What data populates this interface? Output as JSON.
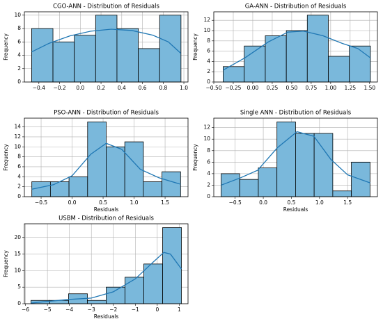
{
  "chart_data": [
    {
      "type": "histogram",
      "title": "CGO-ANN - Distribution of Residuals",
      "ylabel": "Frequency",
      "bins": [
        -0.47,
        -0.264,
        -0.058,
        0.148,
        0.354,
        0.56,
        0.766,
        0.972
      ],
      "values": [
        8,
        6,
        7,
        10,
        8,
        5,
        10
      ],
      "kde": {
        "x": [
          -0.47,
          -0.3,
          -0.1,
          0.1,
          0.3,
          0.5,
          0.7,
          0.85,
          0.97
        ],
        "y": [
          4.5,
          5.8,
          6.9,
          7.6,
          7.9,
          7.7,
          7.0,
          6.0,
          4.3
        ]
      },
      "color": "#7ab8db",
      "line_color": "#1f77b4",
      "grid": true,
      "xlim": [
        -0.54,
        1.04
      ],
      "ylim": [
        0,
        10.5
      ],
      "xticks": [
        {
          "value": -0.4,
          "label": "−0.4"
        },
        {
          "value": -0.2,
          "label": "−0.2"
        },
        {
          "value": 0,
          "label": "0.0"
        },
        0.2,
        0.4,
        0.6,
        0.8,
        {
          "value": 1,
          "label": "1.0"
        }
      ],
      "yticks": [
        0,
        2,
        4,
        6,
        8,
        10
      ]
    },
    {
      "type": "histogram",
      "title": "GA-ANN - Distribution of Residuals",
      "ylabel": "Frequency",
      "bins": [
        -0.38,
        -0.109,
        0.161,
        0.431,
        0.7,
        0.97,
        1.24,
        1.51
      ],
      "values": [
        3,
        7,
        9,
        10,
        13,
        5,
        7
      ],
      "kde": {
        "x": [
          -0.38,
          -0.1,
          0.2,
          0.45,
          0.65,
          0.9,
          1.15,
          1.35,
          1.51
        ],
        "y": [
          2.3,
          4.7,
          7.8,
          9.7,
          9.9,
          9.0,
          7.5,
          6.5,
          4.7
        ]
      },
      "color": "#7ab8db",
      "line_color": "#1f77b4",
      "grid": true,
      "xlim": [
        -0.5,
        1.6
      ],
      "ylim": [
        0,
        13.65
      ],
      "xticks": [
        {
          "value": -0.5,
          "label": "−0.50"
        },
        {
          "value": -0.25,
          "label": "−0.25"
        },
        {
          "value": 0,
          "label": "0.00"
        },
        0.25,
        {
          "value": 0.5,
          "label": "0.50"
        },
        0.75,
        {
          "value": 1,
          "label": "1.00"
        },
        1.25,
        {
          "value": 1.5,
          "label": "1.50"
        }
      ],
      "yticks": [
        0,
        2,
        4,
        6,
        8,
        10,
        12
      ]
    },
    {
      "type": "histogram",
      "title": "PSO-ANN - Distribution of Residuals",
      "xlabel": "Residuals",
      "ylabel": "Frequency",
      "bins": [
        -0.65,
        -0.35,
        -0.05,
        0.25,
        0.55,
        0.85,
        1.15,
        1.45,
        1.75
      ],
      "values": [
        3,
        3,
        4,
        15,
        10,
        11,
        3,
        5
      ],
      "kde": {
        "x": [
          -0.65,
          -0.3,
          0,
          0.3,
          0.55,
          0.8,
          1.1,
          1.4,
          1.75
        ],
        "y": [
          1.5,
          2.4,
          4.2,
          8.5,
          10.7,
          9.5,
          5.5,
          3.8,
          2.5
        ]
      },
      "color": "#7ab8db",
      "line_color": "#1f77b4",
      "grid": true,
      "xlim": [
        -0.77,
        1.87
      ],
      "ylim": [
        0,
        15.75
      ],
      "xticks": [
        {
          "value": -0.5,
          "label": "−0.5"
        },
        {
          "value": 0,
          "label": "0.0"
        },
        0.5,
        {
          "value": 1,
          "label": "1.0"
        },
        1.5
      ],
      "yticks": [
        0,
        2,
        4,
        6,
        8,
        10,
        12,
        14
      ]
    },
    {
      "type": "histogram",
      "title": "Single ANN - Distribution of Residuals",
      "xlabel": "Residuals",
      "ylabel": "Frequency",
      "bins": [
        -0.75,
        -0.419,
        -0.088,
        0.243,
        0.574,
        0.905,
        1.236,
        1.567,
        1.898
      ],
      "values": [
        4,
        3,
        5,
        13,
        11,
        11,
        1,
        6
      ],
      "kde": {
        "x": [
          -0.75,
          -0.4,
          -0.1,
          0.25,
          0.6,
          0.9,
          1.2,
          1.5,
          1.9
        ],
        "y": [
          2.0,
          3.3,
          4.6,
          8.5,
          11.3,
          10.5,
          6.5,
          3.8,
          2.4
        ]
      },
      "color": "#7ab8db",
      "line_color": "#1f77b4",
      "grid": true,
      "xlim": [
        -0.88,
        2.03
      ],
      "ylim": [
        0,
        13.65
      ],
      "xticks": [
        {
          "value": -0.5,
          "label": "−0.5"
        },
        {
          "value": 0,
          "label": "0.0"
        },
        0.5,
        {
          "value": 1,
          "label": "1.0"
        },
        1.5
      ],
      "yticks": [
        0,
        2,
        4,
        6,
        8,
        10,
        12
      ]
    },
    {
      "type": "histogram",
      "title": "USBM - Distribution of Residuals",
      "xlabel": "Residuals",
      "ylabel": "Frequency",
      "bins": [
        -5.75,
        -4.894,
        -4.038,
        -3.181,
        -2.325,
        -1.469,
        -0.613,
        0.244,
        1.1
      ],
      "values": [
        1,
        1,
        3,
        1,
        5,
        8,
        12,
        23
      ],
      "kde": {
        "x": [
          -5.75,
          -5,
          -4,
          -3,
          -2,
          -1,
          -0.2,
          0.3,
          0.6,
          1.1
        ],
        "y": [
          0.2,
          0.7,
          1.3,
          1.7,
          3.6,
          7.5,
          12.5,
          15.5,
          15,
          10.5
        ]
      },
      "color": "#7ab8db",
      "line_color": "#1f77b4",
      "grid": true,
      "xlim": [
        -6.05,
        1.4
      ],
      "ylim": [
        0,
        24.15
      ],
      "xticks": [
        {
          "value": -6,
          "label": "−6"
        },
        {
          "value": -5,
          "label": "−5"
        },
        {
          "value": -4,
          "label": "−4"
        },
        {
          "value": -3,
          "label": "−3"
        },
        {
          "value": -2,
          "label": "−2"
        },
        {
          "value": -1,
          "label": "−1"
        },
        0,
        1
      ],
      "yticks": [
        0,
        5,
        10,
        15,
        20
      ]
    }
  ]
}
